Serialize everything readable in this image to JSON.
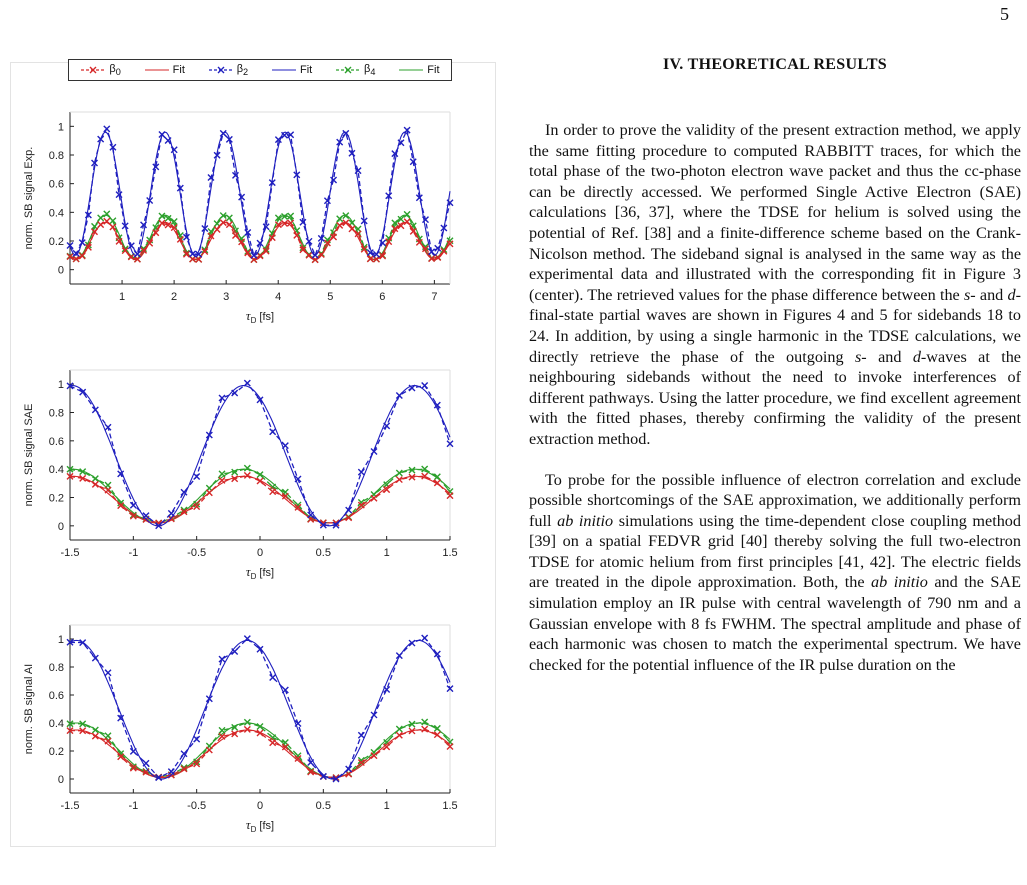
{
  "page_number": "5",
  "figure": {
    "legend": {
      "items": [
        {
          "label": "β",
          "sub": "0",
          "kind": "markers",
          "color": "#d62728"
        },
        {
          "label": "Fit",
          "sub": "",
          "kind": "line",
          "color": "#333333"
        },
        {
          "label": "β",
          "sub": "2",
          "kind": "markers",
          "color": "#1f1fbf"
        },
        {
          "label": "Fit",
          "sub": "",
          "kind": "line",
          "color": "#333333"
        },
        {
          "label": "β",
          "sub": "4",
          "kind": "markers",
          "color": "#2ca02c"
        },
        {
          "label": "Fit",
          "sub": "",
          "kind": "line",
          "color": "#333333"
        }
      ]
    },
    "series_colors": {
      "beta0": "#d62728",
      "beta2": "#1f1fbf",
      "beta4": "#2ca02c"
    }
  },
  "chart_data": [
    {
      "type": "line",
      "ylabel": "norm. SB signal Exp.",
      "xlabel_main": "τ",
      "xlabel_sub": "D",
      "xlabel_unit": "[fs]",
      "xlim": [
        0,
        7.3
      ],
      "ylim": [
        -0.1,
        1.1
      ],
      "xticks": [
        1,
        2,
        3,
        4,
        5,
        6,
        7
      ],
      "xtick_labels": [
        "1",
        "2",
        "3",
        "4",
        "5",
        "6",
        "7"
      ],
      "yticks": [
        0,
        0.2,
        0.4,
        0.6,
        0.8,
        1
      ],
      "ytick_labels": [
        "0",
        "0.2",
        "0.4",
        "0.6",
        "0.8",
        "1"
      ],
      "model": {
        "period": 1.15,
        "phase": 0.68
      },
      "series": [
        {
          "key": "beta0",
          "min": 0.07,
          "max": 0.33
        },
        {
          "key": "beta2",
          "min": 0.1,
          "max": 0.96
        },
        {
          "key": "beta4",
          "min": 0.07,
          "max": 0.38
        }
      ]
    },
    {
      "type": "line",
      "ylabel": "norm. SB signal SAE",
      "xlabel_main": "τ",
      "xlabel_sub": "D",
      "xlabel_unit": "[fs]",
      "xlim": [
        -1.5,
        1.5
      ],
      "ylim": [
        -0.1,
        1.1
      ],
      "xticks": [
        -1.5,
        -1,
        -0.5,
        0,
        0.5,
        1,
        1.5
      ],
      "xtick_labels": [
        "-1.5",
        "-1",
        "-0.5",
        "0",
        "0.5",
        "1",
        "1.5"
      ],
      "yticks": [
        0,
        0.2,
        0.4,
        0.6,
        0.8,
        1
      ],
      "ytick_labels": [
        "0",
        "0.2",
        "0.4",
        "0.6",
        "0.8",
        "1"
      ],
      "model": {
        "period": 1.35,
        "phase": -0.13
      },
      "series": [
        {
          "key": "beta0",
          "min": 0.02,
          "max": 0.35
        },
        {
          "key": "beta2",
          "min": 0.0,
          "max": 0.99
        },
        {
          "key": "beta4",
          "min": 0.02,
          "max": 0.4
        }
      ]
    },
    {
      "type": "line",
      "ylabel": "norm. SB signal AI",
      "xlabel_main": "τ",
      "xlabel_sub": "D",
      "xlabel_unit": "[fs]",
      "xlim": [
        -1.5,
        1.5
      ],
      "ylim": [
        -0.1,
        1.1
      ],
      "xticks": [
        -1.5,
        -1,
        -0.5,
        0,
        0.5,
        1,
        1.5
      ],
      "xtick_labels": [
        "-1.5",
        "-1",
        "-0.5",
        "0",
        "0.5",
        "1",
        "1.5"
      ],
      "yticks": [
        0,
        0.2,
        0.4,
        0.6,
        0.8,
        1
      ],
      "ytick_labels": [
        "0",
        "0.2",
        "0.4",
        "0.6",
        "0.8",
        "1"
      ],
      "model": {
        "period": 1.35,
        "phase": -0.1
      },
      "series": [
        {
          "key": "beta0",
          "min": 0.01,
          "max": 0.35
        },
        {
          "key": "beta2",
          "min": 0.0,
          "max": 0.99
        },
        {
          "key": "beta4",
          "min": 0.01,
          "max": 0.4
        }
      ]
    }
  ],
  "text": {
    "heading": "IV.   THEORETICAL RESULTS",
    "paragraphs": [
      {
        "html": "In order to prove the validity of the present extraction method, we apply the same fitting procedure to computed RABBITT traces, for which the total phase of the two-photon electron wave packet and thus the cc-phase can be directly accessed. We performed Single Active Electron (SAE) calculations [36, 37], where the TDSE for helium is solved using the potential of Ref. [38] and a finite-difference scheme based on the Crank-Nicolson method. The sideband signal is analysed in the same way as the experimental data and illustrated with the corresponding fit in Figure 3 (center). The retrieved values for the phase difference between the <i>s</i>- and <i>d</i>-final-state partial waves are shown in Figures 4 and 5 for sidebands 18 to 24. In addition, by using a single harmonic in the TDSE calculations, we directly retrieve the phase of the outgoing <i>s</i>- and <i>d</i>-waves at the neighbouring sidebands without the need to invoke interferences of different pathways. Using the latter procedure, we find excellent agreement with the fitted phases, thereby confirming the validity of the present extraction method."
      },
      {
        "html": "To probe for the possible influence of electron correlation and exclude possible shortcomings of the SAE approximation, we additionally perform full <i>ab initio</i> simulations using the time-dependent close coupling method [39] on a spatial FEDVR grid [40] thereby solving the full two-electron TDSE for atomic helium from first principles [41, 42]. The electric fields are treated in the dipole approximation. Both, the <i>ab initio</i> and the SAE simulation employ an IR pulse with central wavelength of 790 nm and a Gaussian envelope with 8 fs FWHM. The spectral amplitude and phase of each harmonic was chosen to match the experimental spectrum. We have checked for the potential influence of the IR pulse duration on the"
      }
    ]
  }
}
